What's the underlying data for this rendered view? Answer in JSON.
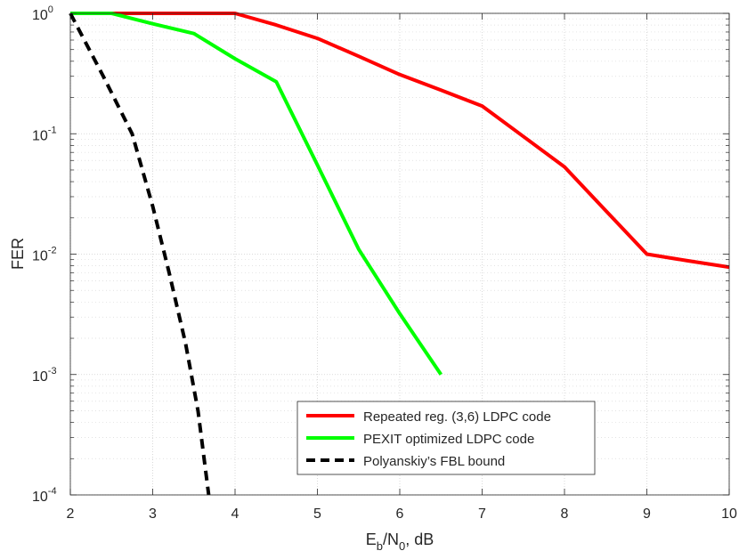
{
  "chart_data": {
    "type": "line",
    "xlabel": {
      "main": "E",
      "sub1": "b",
      "mid": "/N",
      "sub2": "0",
      "tail": ", dB"
    },
    "ylabel": "FER",
    "xlim": [
      2,
      10
    ],
    "ylim": [
      0.0001,
      1
    ],
    "yscale": "log",
    "grid": true,
    "minor_grid": true,
    "x_ticks": [
      2,
      3,
      4,
      5,
      6,
      7,
      8,
      9,
      10
    ],
    "x_tick_labels": [
      "2",
      "3",
      "4",
      "5",
      "6",
      "7",
      "8",
      "9",
      "10"
    ],
    "y_ticks": [
      {
        "value": 1,
        "base": "10",
        "exp": "0"
      },
      {
        "value": 0.1,
        "base": "10",
        "exp": "-1"
      },
      {
        "value": 0.01,
        "base": "10",
        "exp": "-2"
      },
      {
        "value": 0.001,
        "base": "10",
        "exp": "-3"
      },
      {
        "value": 0.0001,
        "base": "10",
        "exp": "-4"
      }
    ],
    "legend_position": "bottom-center",
    "series": [
      {
        "name": "Repeated reg. (3,6) LDPC code",
        "color": "#ff0000",
        "dash": "solid",
        "x": [
          2,
          2.5,
          3,
          3.5,
          4,
          4.5,
          5,
          5.5,
          6,
          6.5,
          7,
          7.5,
          8,
          8.5,
          9,
          9.5,
          10
        ],
        "y": [
          1,
          1,
          1,
          1,
          1,
          0.8,
          0.62,
          0.44,
          0.31,
          0.23,
          0.17,
          0.095,
          0.053,
          0.023,
          0.01,
          0.0088,
          0.0078
        ]
      },
      {
        "name": "PEXIT optimized LDPC code",
        "color": "#00ff00",
        "dash": "solid",
        "x": [
          2,
          2.5,
          3,
          3.5,
          4,
          4.5,
          5,
          5.5,
          6,
          6.5
        ],
        "y": [
          1,
          1,
          0.82,
          0.68,
          0.42,
          0.27,
          0.055,
          0.011,
          0.0032,
          0.001
        ]
      },
      {
        "name": "Polyanskiy’s FBL bound",
        "color": "#000000",
        "dash": "dashed",
        "x": [
          2,
          2.4,
          2.75,
          3,
          3.2,
          3.4,
          3.55,
          3.68
        ],
        "y": [
          1,
          0.3,
          0.1,
          0.025,
          0.007,
          0.0018,
          0.0005,
          0.0001
        ]
      }
    ]
  }
}
